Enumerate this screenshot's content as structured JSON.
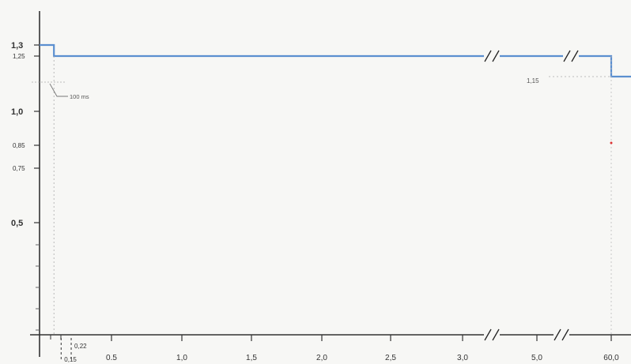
{
  "chart_data": {
    "type": "line",
    "title": "",
    "xlabel": "",
    "ylabel": "",
    "x_ticks": [
      {
        "label": "0,15",
        "v": 0.15,
        "small": true
      },
      {
        "label": "0,22",
        "v": 0.22,
        "small": true
      },
      {
        "label": "0.5",
        "v": 0.5
      },
      {
        "label": "1,0",
        "v": 1.0
      },
      {
        "label": "1,5",
        "v": 1.5
      },
      {
        "label": "2,0",
        "v": 2.0
      },
      {
        "label": "2,5",
        "v": 2.5
      },
      {
        "label": "3,0",
        "v": 3.0
      },
      {
        "label": "5,0",
        "v": 5.0
      },
      {
        "label": "60,0",
        "v": 60.0
      }
    ],
    "y_ticks": [
      {
        "label": "1,3",
        "v": 1.3,
        "bold": true
      },
      {
        "label": "1,25",
        "v": 1.25
      },
      {
        "label": "1,0",
        "v": 1.0,
        "bold": true
      },
      {
        "label": "0,85",
        "v": 0.85
      },
      {
        "label": "0,75",
        "v": 0.75
      },
      {
        "label": "0,5",
        "v": 0.5,
        "bold": true
      }
    ],
    "series": [
      {
        "points": [
          {
            "x": 0,
            "y": 1.3
          },
          {
            "x": 0.1,
            "y": 1.3
          },
          {
            "x": 0.1,
            "y": 1.25
          },
          {
            "x": 60.0,
            "y": 1.25
          },
          {
            "x": 60.0,
            "y": 1.15
          },
          {
            "x": 61.0,
            "y": 1.15
          }
        ],
        "color": "#5b8fd0"
      }
    ],
    "annotations": [
      {
        "text": "100 ms"
      },
      {
        "text": "1,15"
      }
    ],
    "axis_breaks": [
      "3,0–5,0",
      "5,0–60,0"
    ],
    "ylim": [
      0,
      1.35
    ]
  }
}
